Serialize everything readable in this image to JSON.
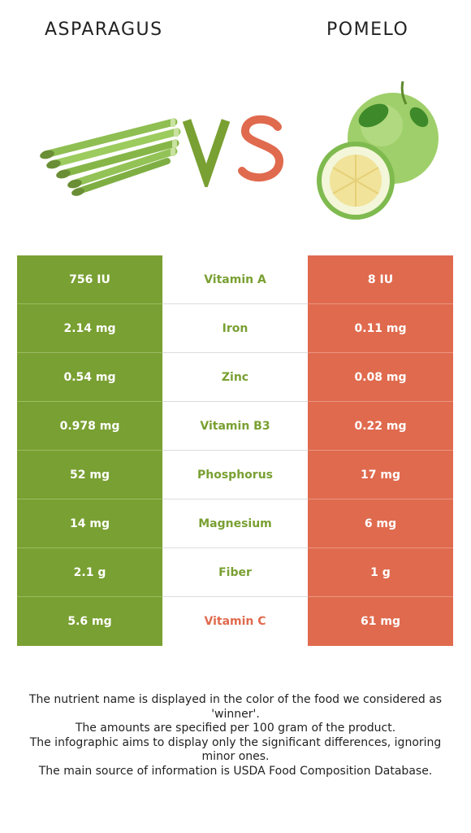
{
  "header": {
    "left_food": "ASPARAGUS",
    "right_food": "POMELO"
  },
  "colors": {
    "asparagus": "#79a032",
    "pomelo": "#e06a4e"
  },
  "comparison": {
    "rows": [
      {
        "left": "756 IU",
        "nutrient": "Vitamin A",
        "right": "8 IU",
        "winner": "asparagus"
      },
      {
        "left": "2.14 mg",
        "nutrient": "Iron",
        "right": "0.11 mg",
        "winner": "asparagus"
      },
      {
        "left": "0.54 mg",
        "nutrient": "Zinc",
        "right": "0.08 mg",
        "winner": "asparagus"
      },
      {
        "left": "0.978 mg",
        "nutrient": "Vitamin B3",
        "right": "0.22 mg",
        "winner": "asparagus"
      },
      {
        "left": "52 mg",
        "nutrient": "Phosphorus",
        "right": "17 mg",
        "winner": "asparagus"
      },
      {
        "left": "14 mg",
        "nutrient": "Magnesium",
        "right": "6 mg",
        "winner": "asparagus"
      },
      {
        "left": "2.1 g",
        "nutrient": "Fiber",
        "right": "1 g",
        "winner": "asparagus"
      },
      {
        "left": "5.6 mg",
        "nutrient": "Vitamin C",
        "right": "61 mg",
        "winner": "pomelo"
      }
    ]
  },
  "footnote": {
    "line1": "The nutrient name is displayed in the color of the food we considered as 'winner'.",
    "line2": "The amounts are specified per 100 gram of the product.",
    "line3": "The infographic aims to display only the significant differences, ignoring minor ones.",
    "line4": "The main source of information is USDA Food Composition Database."
  }
}
